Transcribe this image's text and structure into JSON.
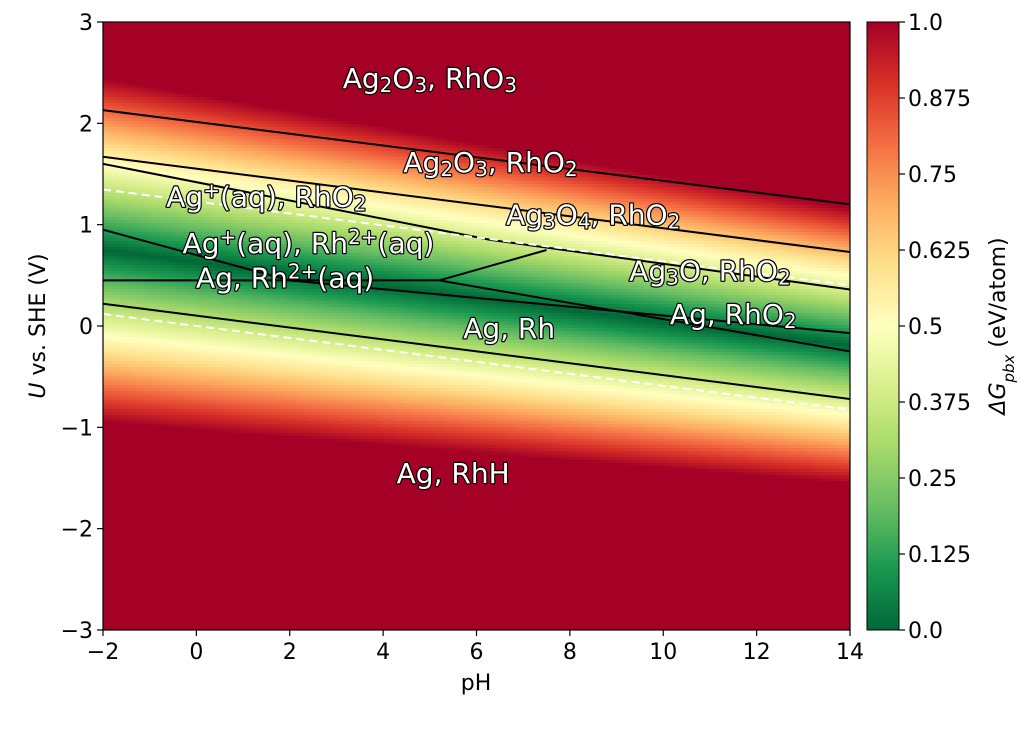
{
  "chart_data": {
    "type": "heatmap",
    "title": "",
    "xlabel": "pH",
    "ylabel": {
      "italic": "U",
      "rest": " vs. SHE (V)"
    },
    "xlim": [
      -2,
      14
    ],
    "ylim": [
      -3,
      3
    ],
    "xticks": [
      {
        "value": -2,
        "label": "−2"
      },
      {
        "value": 0,
        "label": "0"
      },
      {
        "value": 2,
        "label": "2"
      },
      {
        "value": 4,
        "label": "4"
      },
      {
        "value": 6,
        "label": "6"
      },
      {
        "value": 8,
        "label": "8"
      },
      {
        "value": 10,
        "label": "10"
      },
      {
        "value": 12,
        "label": "12"
      },
      {
        "value": 14,
        "label": "14"
      }
    ],
    "yticks": [
      {
        "value": -3,
        "label": "−3"
      },
      {
        "value": -2,
        "label": "−2"
      },
      {
        "value": -1,
        "label": "−1"
      },
      {
        "value": 0,
        "label": "0"
      },
      {
        "value": 1,
        "label": "1"
      },
      {
        "value": 2,
        "label": "2"
      },
      {
        "value": 3,
        "label": "3"
      }
    ],
    "colorbar": {
      "label": "ΔG",
      "label_sub": "pbx",
      "label_rest": " (eV/atom)",
      "range": [
        0.0,
        1.0
      ],
      "colormap": "RdYlGn_r",
      "ticks": [
        {
          "value": 0.0,
          "label": "0.0"
        },
        {
          "value": 0.125,
          "label": "0.125"
        },
        {
          "value": 0.25,
          "label": "0.25"
        },
        {
          "value": 0.375,
          "label": "0.375"
        },
        {
          "value": 0.5,
          "label": "0.5"
        },
        {
          "value": 0.625,
          "label": "0.625"
        },
        {
          "value": 0.75,
          "label": "0.75"
        },
        {
          "value": 0.875,
          "label": "0.875"
        },
        {
          "value": 1.0,
          "label": "1.0"
        }
      ]
    },
    "stability_band": {
      "minimum_intercept": 0.63,
      "slope": -0.059,
      "half_width_zero": 1.7
    },
    "water_lines": [
      {
        "name": "O2/H2O",
        "points": [
          [
            -2,
            1.347
          ],
          [
            14,
            0.403
          ]
        ],
        "color": "#ffffff",
        "style": "dashed"
      },
      {
        "name": "H2O/H2",
        "points": [
          [
            -2,
            0.118
          ],
          [
            14,
            -0.826
          ]
        ],
        "color": "#ffffff",
        "style": "dashed"
      }
    ],
    "boundaries": [
      {
        "points": [
          [
            -2,
            2.13
          ],
          [
            14,
            1.2
          ]
        ]
      },
      {
        "points": [
          [
            -2,
            1.67
          ],
          [
            14,
            0.73
          ]
        ]
      },
      {
        "points": [
          [
            -2,
            1.6
          ],
          [
            6.3,
            0.85
          ],
          [
            14,
            0.36
          ]
        ]
      },
      {
        "points": [
          [
            -2,
            0.95
          ],
          [
            2,
            0.45
          ]
        ]
      },
      {
        "points": [
          [
            -2,
            0.45
          ],
          [
            5.2,
            0.45
          ]
        ]
      },
      {
        "points": [
          [
            5.2,
            0.45
          ],
          [
            7.5,
            0.75
          ]
        ]
      },
      {
        "points": [
          [
            2,
            0.45
          ],
          [
            14,
            -0.07
          ]
        ]
      },
      {
        "points": [
          [
            5.2,
            0.45
          ],
          [
            14,
            -0.25
          ]
        ]
      },
      {
        "points": [
          [
            -2,
            0.22
          ],
          [
            14,
            -0.72
          ]
        ]
      }
    ],
    "regions": [
      {
        "x": 5.0,
        "y": 2.35,
        "parts": [
          {
            "t": "Ag"
          },
          {
            "t": "2",
            "sub": true
          },
          {
            "t": "O"
          },
          {
            "t": "3",
            "sub": true
          },
          {
            "t": ", RhO"
          },
          {
            "t": "3",
            "sub": true
          }
        ]
      },
      {
        "x": 6.3,
        "y": 1.52,
        "parts": [
          {
            "t": "Ag"
          },
          {
            "t": "2",
            "sub": true
          },
          {
            "t": "O"
          },
          {
            "t": "3",
            "sub": true
          },
          {
            "t": ", RhO"
          },
          {
            "t": "2",
            "sub": true
          }
        ]
      },
      {
        "x": 1.5,
        "y": 1.18,
        "parts": [
          {
            "t": "Ag"
          },
          {
            "t": "+",
            "sup": true
          },
          {
            "t": "(aq), RhO"
          },
          {
            "t": "2",
            "sub": true
          }
        ]
      },
      {
        "x": 8.5,
        "y": 1.0,
        "parts": [
          {
            "t": "Ag"
          },
          {
            "t": "3",
            "sub": true
          },
          {
            "t": "O"
          },
          {
            "t": "4",
            "sub": true
          },
          {
            "t": ", RhO"
          },
          {
            "t": "2",
            "sub": true
          }
        ]
      },
      {
        "x": 2.4,
        "y": 0.72,
        "parts": [
          {
            "t": "Ag"
          },
          {
            "t": "+",
            "sup": true
          },
          {
            "t": "(aq), Rh"
          },
          {
            "t": "2+",
            "sup": true
          },
          {
            "t": "(aq)"
          }
        ]
      },
      {
        "x": 1.9,
        "y": 0.38,
        "parts": [
          {
            "t": "Ag, Rh"
          },
          {
            "t": "2+",
            "sup": true
          },
          {
            "t": "(aq)"
          }
        ]
      },
      {
        "x": 11.0,
        "y": 0.45,
        "parts": [
          {
            "t": "Ag"
          },
          {
            "t": "3",
            "sub": true
          },
          {
            "t": "O, RhO"
          },
          {
            "t": "2",
            "sub": true
          }
        ]
      },
      {
        "x": 11.5,
        "y": 0.02,
        "parts": [
          {
            "t": "Ag, RhO"
          },
          {
            "t": "2",
            "sub": true
          }
        ]
      },
      {
        "x": 6.7,
        "y": -0.12,
        "parts": [
          {
            "t": "Ag, Rh"
          }
        ]
      },
      {
        "x": 5.5,
        "y": -1.55,
        "parts": [
          {
            "t": "Ag, RhH"
          }
        ]
      }
    ]
  }
}
